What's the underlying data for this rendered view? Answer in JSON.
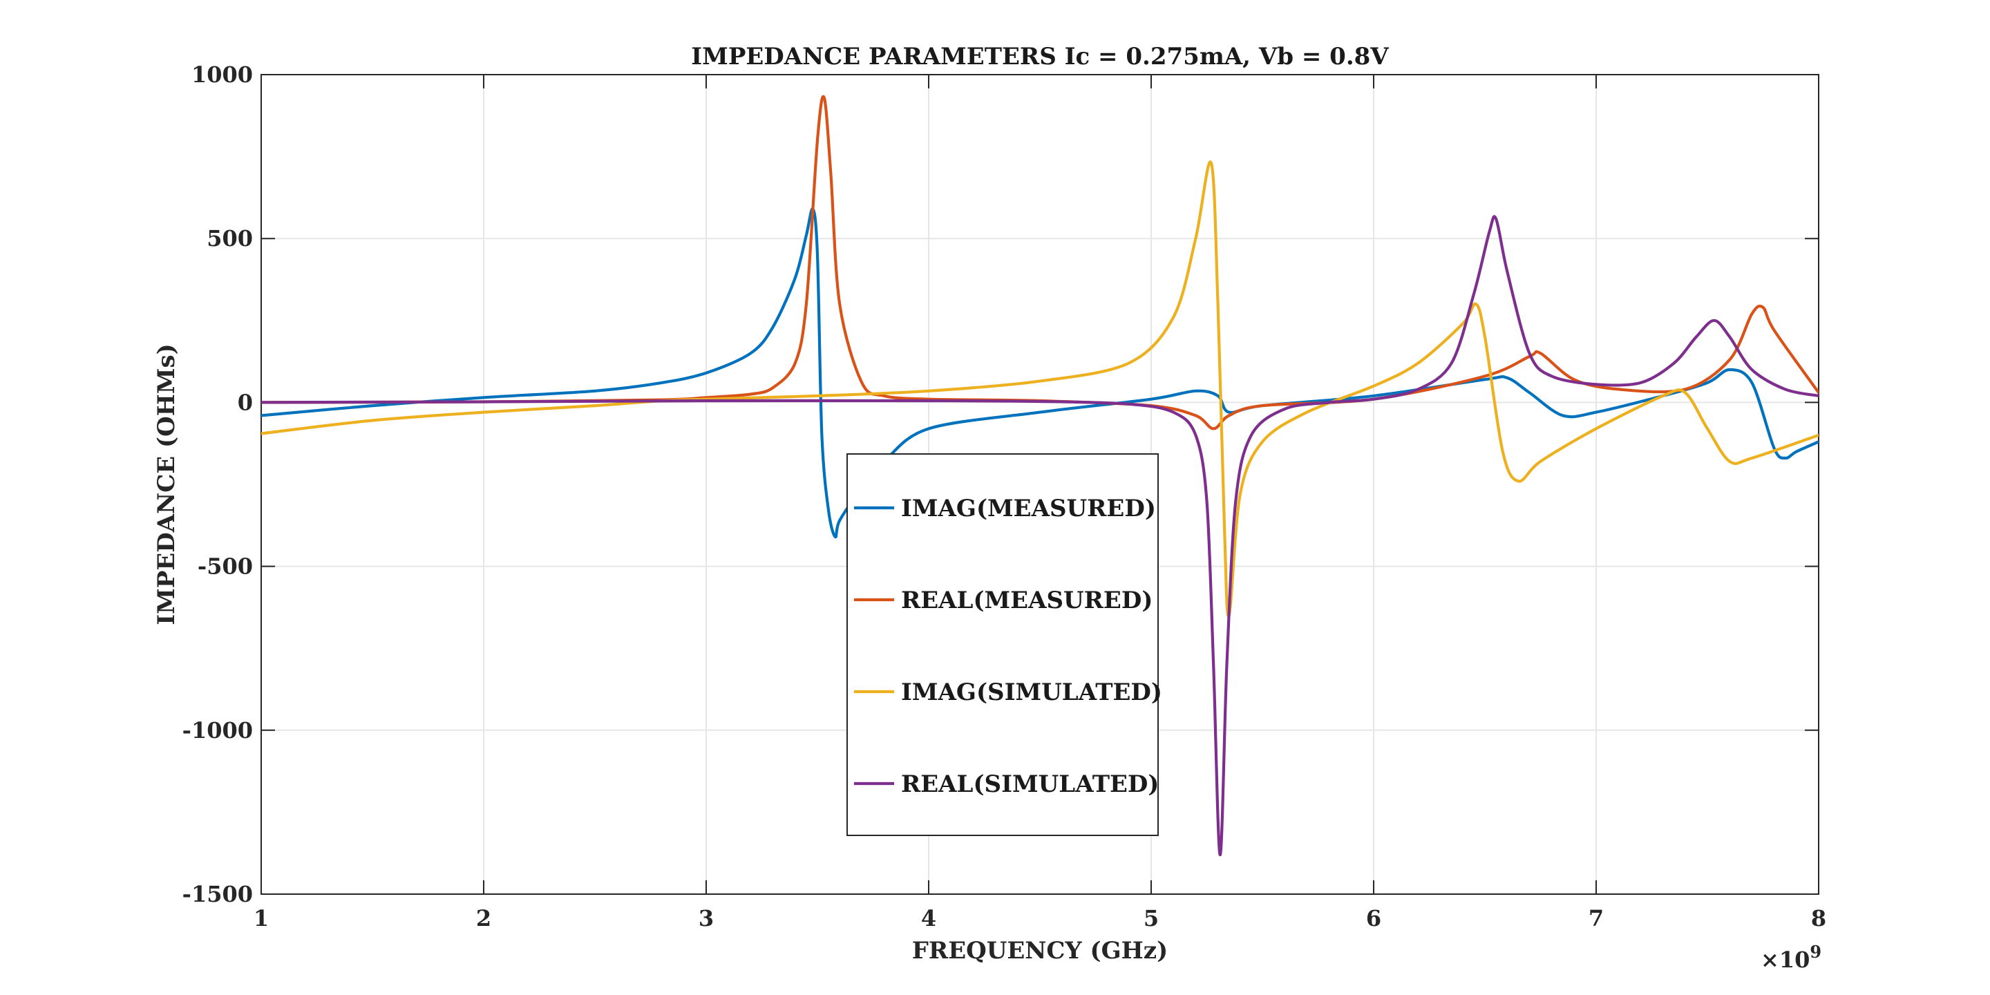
{
  "chart_data": {
    "type": "line",
    "title": "IMPEDANCE PARAMETERS Ic = 0.275mA, Vb = 0.8V",
    "xlabel": "FREQUENCY (GHz)",
    "ylabel": "IMPEDANCE (OHMs)",
    "x_exponent_base": "×10",
    "x_exponent_power": "9",
    "xlim": [
      1,
      8
    ],
    "ylim": [
      -1500,
      1000
    ],
    "xticks": [
      1,
      2,
      3,
      4,
      5,
      6,
      7,
      8
    ],
    "xtick_labels": [
      "1",
      "2",
      "3",
      "4",
      "5",
      "6",
      "7",
      "8"
    ],
    "yticks": [
      -1500,
      -1000,
      -500,
      0,
      500,
      1000
    ],
    "ytick_labels": [
      "-1500",
      "-1000",
      "-500",
      "0",
      "500",
      "1000"
    ],
    "grid": true,
    "legend_position": "center",
    "series": [
      {
        "name": "IMAG(MEASURED)",
        "color": "#0072BD",
        "x": [
          1.0,
          1.5,
          2.0,
          2.5,
          2.8,
          3.0,
          3.2,
          3.3,
          3.4,
          3.45,
          3.48,
          3.5,
          3.52,
          3.55,
          3.58,
          3.6,
          3.7,
          3.8,
          4.0,
          4.5,
          5.0,
          5.2,
          5.3,
          5.35,
          5.5,
          6.0,
          6.5,
          6.6,
          6.7,
          6.85,
          7.0,
          7.3,
          7.5,
          7.6,
          7.7,
          7.8,
          7.85,
          7.9,
          8.0
        ],
        "y": [
          -40,
          -10,
          15,
          35,
          60,
          90,
          150,
          230,
          380,
          510,
          590,
          450,
          -100,
          -330,
          -410,
          -360,
          -260,
          -180,
          -80,
          -30,
          10,
          35,
          20,
          -30,
          -10,
          20,
          70,
          75,
          30,
          -40,
          -30,
          20,
          60,
          100,
          60,
          -140,
          -170,
          -150,
          -120
        ]
      },
      {
        "name": "REAL(MEASURED)",
        "color": "#D95319",
        "x": [
          1.0,
          2.0,
          2.8,
          3.0,
          3.2,
          3.3,
          3.4,
          3.45,
          3.5,
          3.53,
          3.56,
          3.6,
          3.7,
          3.8,
          4.0,
          4.5,
          5.0,
          5.2,
          5.28,
          5.35,
          5.5,
          6.0,
          6.5,
          6.7,
          6.75,
          6.9,
          7.1,
          7.4,
          7.6,
          7.7,
          7.75,
          7.8,
          8.0
        ],
        "y": [
          0,
          2,
          8,
          15,
          25,
          45,
          120,
          300,
          800,
          930,
          700,
          300,
          60,
          20,
          10,
          5,
          -10,
          -40,
          -80,
          -40,
          -10,
          10,
          80,
          140,
          150,
          70,
          40,
          40,
          130,
          270,
          290,
          220,
          30
        ]
      },
      {
        "name": "IMAG(SIMULATED)",
        "color": "#EDB120",
        "x": [
          1.0,
          1.5,
          2.0,
          2.5,
          2.8,
          3.0,
          3.5,
          4.0,
          4.5,
          4.9,
          5.1,
          5.2,
          5.27,
          5.3,
          5.33,
          5.35,
          5.4,
          5.5,
          5.7,
          6.0,
          6.2,
          6.4,
          6.46,
          6.5,
          6.58,
          6.65,
          6.75,
          7.0,
          7.3,
          7.4,
          7.5,
          7.6,
          7.7,
          8.0
        ],
        "y": [
          -95,
          -55,
          -30,
          -10,
          5,
          10,
          20,
          35,
          65,
          120,
          260,
          500,
          730,
          300,
          -400,
          -650,
          -280,
          -120,
          -30,
          50,
          120,
          240,
          300,
          200,
          -150,
          -240,
          -180,
          -80,
          20,
          30,
          -80,
          -180,
          -170,
          -100
        ]
      },
      {
        "name": "REAL(SIMULATED)",
        "color": "#7E2F8E",
        "x": [
          1.0,
          2.0,
          3.0,
          4.0,
          4.5,
          4.9,
          5.1,
          5.2,
          5.25,
          5.28,
          5.31,
          5.34,
          5.38,
          5.45,
          5.6,
          5.8,
          6.0,
          6.2,
          6.35,
          6.45,
          6.52,
          6.55,
          6.6,
          6.7,
          6.8,
          7.0,
          7.2,
          7.35,
          7.45,
          7.53,
          7.6,
          7.7,
          7.85,
          8.0
        ],
        "y": [
          0,
          2,
          5,
          5,
          3,
          -5,
          -30,
          -100,
          -300,
          -800,
          -1380,
          -800,
          -300,
          -100,
          -20,
          0,
          10,
          40,
          120,
          330,
          520,
          560,
          400,
          150,
          80,
          55,
          60,
          120,
          200,
          250,
          200,
          100,
          40,
          20
        ]
      }
    ]
  }
}
